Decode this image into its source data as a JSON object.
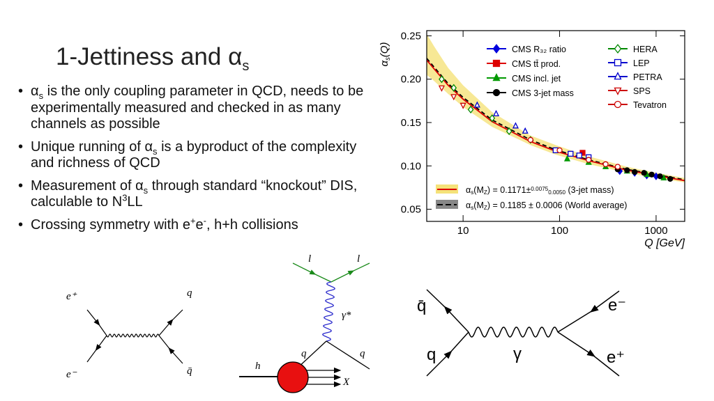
{
  "slide": {
    "title_runs": [
      {
        "text": "1-Jettiness and α"
      },
      {
        "text": "s",
        "style": "sub"
      }
    ],
    "bullets": [
      {
        "runs": [
          {
            "text": "α"
          },
          {
            "text": "s",
            "style": "sub"
          },
          {
            "text": " is the only coupling parameter in QCD, needs to be experimentally measured and checked in as many channels as possible"
          }
        ]
      },
      {
        "runs": [
          {
            "text": "Unique running of α"
          },
          {
            "text": "s",
            "style": "sub"
          },
          {
            "text": " is a byproduct of the complexity and richness of QCD"
          }
        ]
      },
      {
        "runs": [
          {
            "text": "Measurement of α"
          },
          {
            "text": "s",
            "style": "sub"
          },
          {
            "text": " through standard “knockout” DIS, calculable to N"
          },
          {
            "text": "3",
            "style": "sup"
          },
          {
            "text": "LL"
          }
        ]
      },
      {
        "runs": [
          {
            "text": "Crossing symmetry with e"
          },
          {
            "text": "+",
            "style": "sup"
          },
          {
            "text": "e"
          },
          {
            "text": "-",
            "style": "sup"
          },
          {
            "text": ", h+h collisions"
          }
        ]
      }
    ]
  },
  "chart": {
    "type": "scatter",
    "y_label_runs": [
      {
        "text": "α"
      },
      {
        "text": "s",
        "style": "sub"
      },
      {
        "text": "(Q)"
      }
    ],
    "x_label": "Q [GeV]",
    "x_log": true,
    "xlim": [
      4.2,
      1980
    ],
    "ylim": [
      0.036,
      0.256
    ],
    "xticks": [
      10,
      100,
      1000
    ],
    "yticks": [
      0.05,
      {
        "value": 0.1,
        "label": "0.10"
      },
      0.15,
      {
        "value": 0.2,
        "label": "0.20"
      },
      0.25
    ],
    "series": [
      {
        "name": "CMS R₃₂ ratio",
        "color": "#0000dd",
        "marker": "diamond",
        "filled": true,
        "x": [
          420,
          600,
          800,
          1000
        ],
        "values": [
          0.094,
          0.092,
          0.089,
          0.088
        ]
      },
      {
        "name": "CMS tt̄ prod.",
        "color": "#dd0000",
        "marker": "square",
        "filled": true,
        "x": [
          173
        ],
        "values": [
          0.1151
        ]
      },
      {
        "name": "CMS incl. jet",
        "color": "#009900",
        "marker": "triangle",
        "filled": true,
        "x": [
          120,
          200,
          300,
          500,
          800,
          1200
        ],
        "values": [
          0.108,
          0.104,
          0.099,
          0.094,
          0.09,
          0.086
        ]
      },
      {
        "name": "CMS 3-jet mass",
        "color": "#000000",
        "marker": "circle",
        "filled": true,
        "x": [
          400,
          500,
          600,
          750,
          900,
          1100,
          1400
        ],
        "values": [
          0.096,
          0.095,
          0.093,
          0.092,
          0.09,
          0.088,
          0.085
        ]
      },
      {
        "name": "HERA",
        "color": "#008800",
        "marker": "diamond",
        "filled": false,
        "x": [
          6,
          8,
          12,
          20,
          30,
          50
        ],
        "values": [
          0.2,
          0.19,
          0.165,
          0.155,
          0.14,
          0.13
        ]
      },
      {
        "name": "LEP",
        "color": "#0000cc",
        "marker": "square",
        "filled": false,
        "x": [
          91,
          130,
          160,
          200
        ],
        "values": [
          0.118,
          0.114,
          0.112,
          0.11
        ]
      },
      {
        "name": "PETRA",
        "color": "#0000cc",
        "marker": "triangle",
        "filled": false,
        "x": [
          14,
          22,
          35,
          44
        ],
        "values": [
          0.17,
          0.16,
          0.146,
          0.14
        ]
      },
      {
        "name": "SPS",
        "color": "#cc0000",
        "marker": "triangle-down",
        "filled": false,
        "x": [
          6,
          8,
          10
        ],
        "values": [
          0.19,
          0.18,
          0.17
        ]
      },
      {
        "name": "Tevatron",
        "color": "#cc0000",
        "marker": "circle",
        "filled": false,
        "x": [
          50,
          100,
          200,
          300,
          400
        ],
        "values": [
          0.13,
          0.118,
          0.107,
          0.102,
          0.099
        ]
      }
    ],
    "fits": [
      {
        "label_runs": [
          {
            "text": "α"
          },
          {
            "text": "s",
            "style": "sub"
          },
          {
            "text": "(M"
          },
          {
            "text": "Z",
            "style": "sub"
          },
          {
            "text": ") = 0.1171±"
          },
          {
            "text": "0.0075",
            "style": "sup"
          },
          {
            "text": "0.0050",
            "style": "sub"
          },
          {
            "text": " (3-jet mass)"
          }
        ],
        "color": "#dd0000",
        "band_color": "#f5e27a",
        "dashed": false,
        "x": [
          4.2,
          5,
          7,
          10,
          20,
          50,
          91.2,
          200,
          500,
          1000,
          1980
        ],
        "values": [
          0.222,
          0.212,
          0.193,
          0.177,
          0.151,
          0.128,
          0.117,
          0.106,
          0.095,
          0.089,
          0.083
        ],
        "band_low": [
          0.205,
          0.198,
          0.183,
          0.168,
          0.145,
          0.124,
          0.113,
          0.102,
          0.092,
          0.086,
          0.081
        ],
        "band_high": [
          0.252,
          0.238,
          0.213,
          0.193,
          0.162,
          0.135,
          0.124,
          0.111,
          0.099,
          0.092,
          0.086
        ]
      },
      {
        "label_runs": [
          {
            "text": "α"
          },
          {
            "text": "s",
            "style": "sub"
          },
          {
            "text": "(M"
          },
          {
            "text": "Z",
            "style": "sub"
          },
          {
            "text": ") = 0.1185 ± 0.0006 (World average)"
          }
        ],
        "color": "#000000",
        "band_color": "#888888",
        "dashed": true,
        "x": [
          4.2,
          5,
          7,
          10,
          20,
          50,
          91.2,
          200,
          500,
          1000,
          1980
        ],
        "values": [
          0.224,
          0.214,
          0.195,
          0.179,
          0.153,
          0.13,
          0.1185,
          0.107,
          0.096,
          0.09,
          0.084
        ]
      }
    ]
  },
  "diagrams": [
    {
      "labels": [
        "e⁺",
        "e⁻",
        "q",
        "q̄"
      ]
    },
    {
      "labels": [
        "l",
        "l",
        "γ*",
        "q",
        "q",
        "h",
        "X"
      ]
    },
    {
      "labels": [
        "q̄",
        "q",
        "γ",
        "e⁻",
        "e⁺"
      ]
    }
  ]
}
